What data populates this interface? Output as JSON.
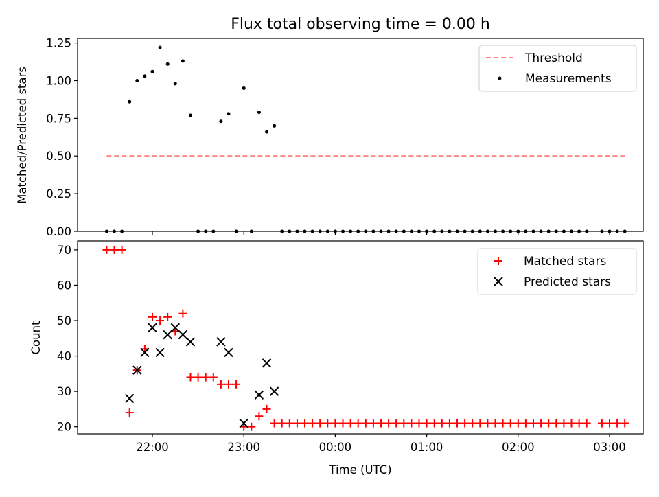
{
  "title": "Flux total observing time = 0.00 h",
  "top": {
    "ylabel": "Matched/Predicted stars",
    "ylim": [
      0,
      1.28
    ],
    "yticks": [
      "0.00",
      "0.25",
      "0.50",
      "0.75",
      "1.00",
      "1.25"
    ],
    "legend": [
      "Threshold",
      "Measurements"
    ]
  },
  "bottom": {
    "ylabel": "Count",
    "xlabel": "Time (UTC)",
    "ylim": [
      18,
      72.5
    ],
    "yticks": [
      "20",
      "30",
      "40",
      "50",
      "60",
      "70"
    ],
    "legend": [
      "Matched stars",
      "Predicted stars"
    ]
  },
  "xaxis": {
    "ticks": [
      "22:00",
      "23:00",
      "00:00",
      "01:00",
      "02:00",
      "03:00"
    ]
  },
  "colors": {
    "threshold": "#ff7f7f",
    "measurements": "#000000",
    "matched": "#ff0000",
    "predicted": "#000000"
  },
  "chart_data": [
    {
      "type": "line+scatter",
      "xlabel": "",
      "ylabel": "Matched/Predicted stars",
      "ylim": [
        0,
        1.28
      ],
      "series": [
        {
          "name": "Threshold",
          "kind": "line",
          "style": "dashed",
          "x": [
            "21:30",
            "03:10"
          ],
          "y": [
            0.5,
            0.5
          ]
        },
        {
          "name": "Measurements",
          "kind": "scatter",
          "x": [
            "21:30",
            "21:35",
            "21:40",
            "21:45",
            "21:50",
            "21:55",
            "22:00",
            "22:05",
            "22:10",
            "22:15",
            "22:20",
            "22:25",
            "22:30",
            "22:35",
            "22:40",
            "22:45",
            "22:50",
            "22:55",
            "23:00",
            "23:05",
            "23:10",
            "23:15",
            "23:20",
            "23:25",
            "23:30",
            "23:35",
            "23:40",
            "23:45",
            "23:50",
            "23:55",
            "00:00",
            "00:05",
            "00:10",
            "00:15",
            "00:20",
            "00:25",
            "00:30",
            "00:35",
            "00:40",
            "00:45",
            "00:50",
            "00:55",
            "01:00",
            "01:05",
            "01:10",
            "01:15",
            "01:20",
            "01:25",
            "01:30",
            "01:35",
            "01:40",
            "01:45",
            "01:50",
            "01:55",
            "02:00",
            "02:05",
            "02:10",
            "02:15",
            "02:20",
            "02:25",
            "02:30",
            "02:35",
            "02:40",
            "02:45",
            "02:55",
            "03:00",
            "03:05",
            "03:10"
          ],
          "y": [
            0,
            0,
            0,
            0.86,
            1.0,
            1.03,
            1.06,
            1.22,
            1.11,
            0.98,
            1.13,
            0.77,
            0,
            0,
            0,
            0.73,
            0.78,
            0,
            0.95,
            0,
            0.79,
            0.66,
            0.7,
            0,
            0,
            0,
            0,
            0,
            0,
            0,
            0,
            0,
            0,
            0,
            0,
            0,
            0,
            0,
            0,
            0,
            0,
            0,
            0,
            0,
            0,
            0,
            0,
            0,
            0,
            0,
            0,
            0,
            0,
            0,
            0,
            0,
            0,
            0,
            0,
            0,
            0,
            0,
            0,
            0,
            0,
            0,
            0,
            0
          ]
        }
      ]
    },
    {
      "type": "scatter",
      "xlabel": "Time (UTC)",
      "ylabel": "Count",
      "ylim": [
        18,
        72.5
      ],
      "series": [
        {
          "name": "Matched stars",
          "marker": "+",
          "x": [
            "21:30",
            "21:35",
            "21:40",
            "21:45",
            "21:50",
            "21:55",
            "22:00",
            "22:05",
            "22:10",
            "22:15",
            "22:20",
            "22:25",
            "22:30",
            "22:35",
            "22:40",
            "22:45",
            "22:50",
            "22:55",
            "23:00",
            "23:05",
            "23:10",
            "23:15",
            "23:20",
            "23:25",
            "23:30",
            "23:35",
            "23:40",
            "23:45",
            "23:50",
            "23:55",
            "00:00",
            "00:05",
            "00:10",
            "00:15",
            "00:20",
            "00:25",
            "00:30",
            "00:35",
            "00:40",
            "00:45",
            "00:50",
            "00:55",
            "01:00",
            "01:05",
            "01:10",
            "01:15",
            "01:20",
            "01:25",
            "01:30",
            "01:35",
            "01:40",
            "01:45",
            "01:50",
            "01:55",
            "02:00",
            "02:05",
            "02:10",
            "02:15",
            "02:20",
            "02:25",
            "02:30",
            "02:35",
            "02:40",
            "02:45",
            "02:55",
            "03:00",
            "03:05",
            "03:10"
          ],
          "y": [
            70,
            70,
            70,
            24,
            36,
            42,
            51,
            50,
            51,
            47,
            52,
            34,
            34,
            34,
            34,
            32,
            32,
            32,
            20,
            20,
            23,
            25,
            21,
            21,
            21,
            21,
            21,
            21,
            21,
            21,
            21,
            21,
            21,
            21,
            21,
            21,
            21,
            21,
            21,
            21,
            21,
            21,
            21,
            21,
            21,
            21,
            21,
            21,
            21,
            21,
            21,
            21,
            21,
            21,
            21,
            21,
            21,
            21,
            21,
            21,
            21,
            21,
            21,
            21,
            21,
            21,
            21,
            21
          ]
        },
        {
          "name": "Predicted stars",
          "marker": "x",
          "x": [
            "21:45",
            "21:50",
            "21:55",
            "22:00",
            "22:05",
            "22:10",
            "22:15",
            "22:20",
            "22:25",
            "22:45",
            "22:50",
            "23:00",
            "23:10",
            "23:15",
            "23:20"
          ],
          "y": [
            28,
            36,
            41,
            48,
            41,
            46,
            48,
            46,
            44,
            44,
            41,
            21,
            29,
            38,
            30
          ]
        }
      ]
    }
  ]
}
